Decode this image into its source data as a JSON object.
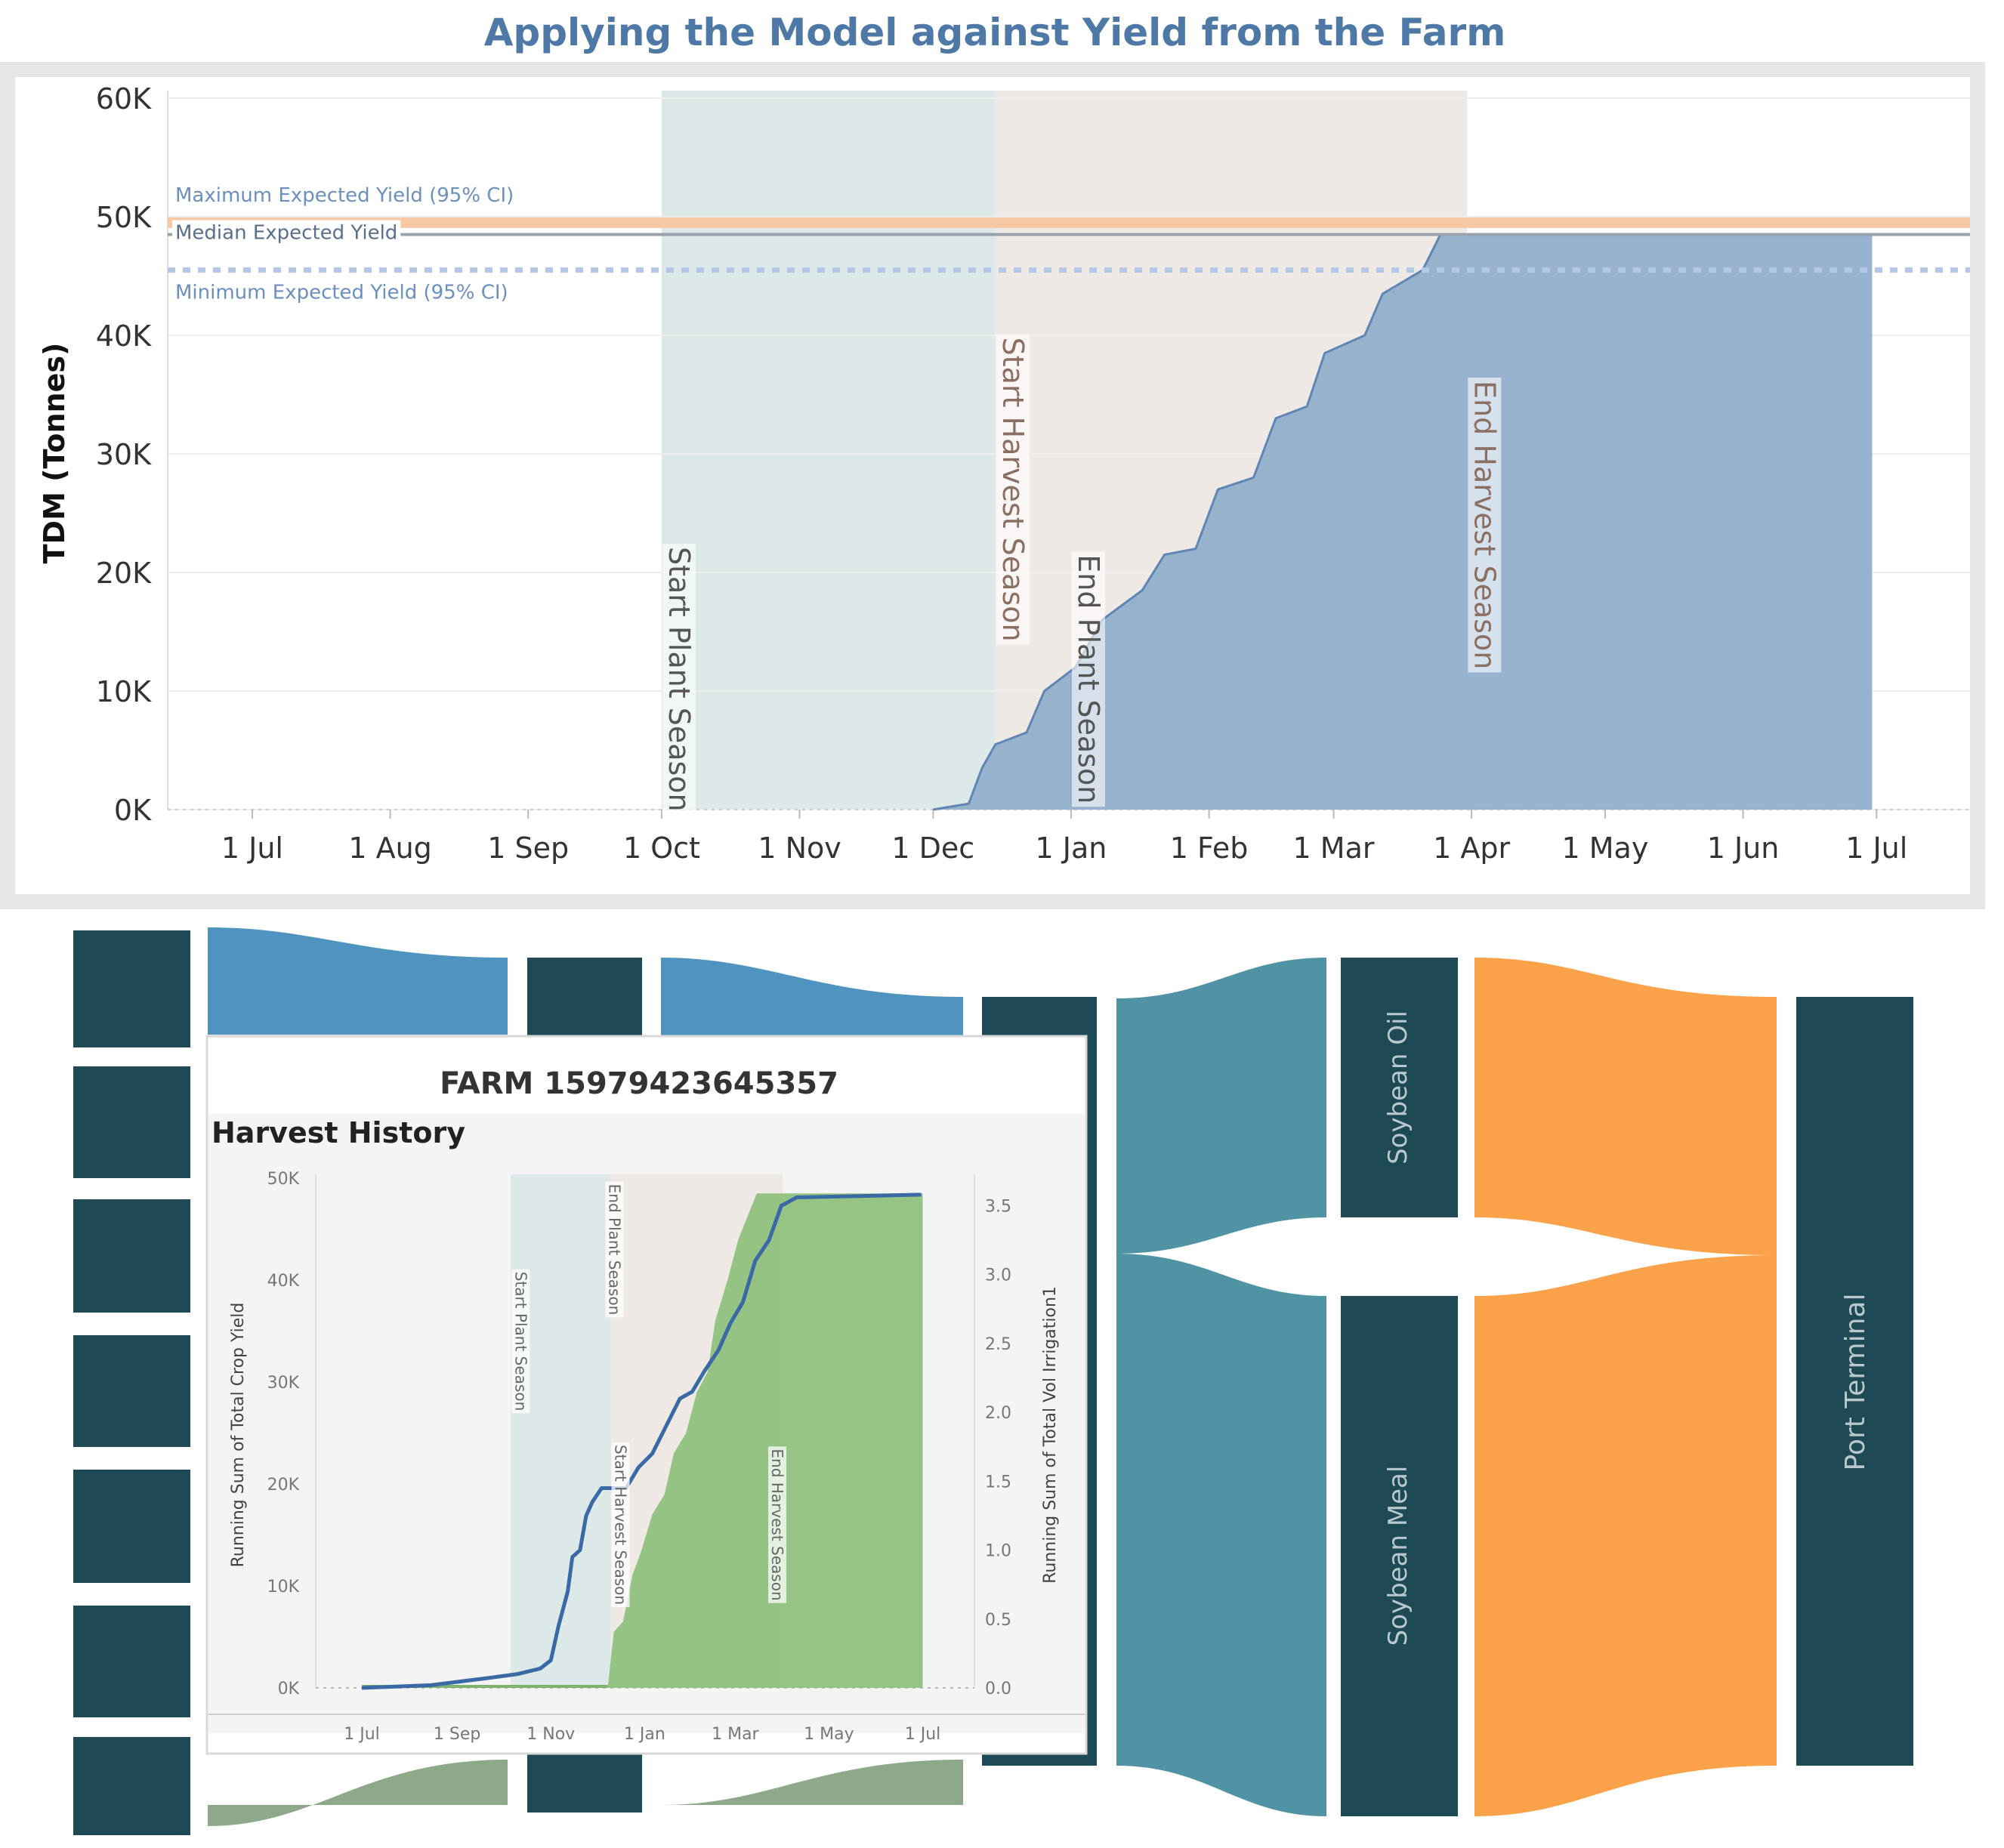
{
  "page_title": "Applying the Model against Yield from the Farm",
  "colors": {
    "title": "#4e79a7",
    "area_fill": "#8eaccb",
    "area_line": "#5f86b4",
    "plant_band": "#dde9e8",
    "harvest_band": "#efe9e6",
    "max_line": "#f6c9a4",
    "median_line": "#9aa3ad",
    "min_line": "#b3c8e6",
    "frame": "#e6e6e6",
    "node_dark": "#1e4a55",
    "flow_blue": "#4f94c1",
    "flow_teal": "#4f93a5",
    "flow_orange": "#fba24a",
    "flow_green": "#8da98a",
    "inset_green": "#8fc17e",
    "inset_line": "#3a6aa6"
  },
  "chart_data": [
    {
      "id": "main",
      "type": "area",
      "title": "Applying the Model against Yield from the Farm",
      "xlabel": "",
      "ylabel": "TDM (Tonnes)",
      "ylim": [
        0,
        60000
      ],
      "xlim": [
        "2022-06-12",
        "2023-07-22"
      ],
      "y_ticks": [
        {
          "value": 0,
          "label": "0K"
        },
        {
          "value": 10000,
          "label": "10K"
        },
        {
          "value": 20000,
          "label": "20K"
        },
        {
          "value": 30000,
          "label": "30K"
        },
        {
          "value": 40000,
          "label": "40K"
        },
        {
          "value": 50000,
          "label": "50K"
        },
        {
          "value": 60000,
          "label": "60K"
        }
      ],
      "x_ticks": [
        {
          "date": "2022-07-01",
          "label": "1 Jul"
        },
        {
          "date": "2022-08-01",
          "label": "1 Aug"
        },
        {
          "date": "2022-09-01",
          "label": "1 Sep"
        },
        {
          "date": "2022-10-01",
          "label": "1 Oct"
        },
        {
          "date": "2022-11-01",
          "label": "1 Nov"
        },
        {
          "date": "2022-12-01",
          "label": "1 Dec"
        },
        {
          "date": "2023-01-01",
          "label": "1 Jan"
        },
        {
          "date": "2023-02-01",
          "label": "1 Feb"
        },
        {
          "date": "2023-03-01",
          "label": "1 Mar"
        },
        {
          "date": "2023-04-01",
          "label": "1 Apr"
        },
        {
          "date": "2023-05-01",
          "label": "1 May"
        },
        {
          "date": "2023-06-01",
          "label": "1 Jun"
        },
        {
          "date": "2023-07-01",
          "label": "1 Jul"
        }
      ],
      "grid": true,
      "bands": [
        {
          "start": "2022-10-01",
          "end": "2022-12-15",
          "kind": "plant"
        },
        {
          "start": "2022-12-15",
          "end": "2023-03-31",
          "kind": "harvest"
        }
      ],
      "season_markers": [
        {
          "date": "2022-10-01",
          "label": "Start Plant Season",
          "y": 11000,
          "kind": "plant"
        },
        {
          "date": "2022-12-15",
          "label": "Start Harvest Season",
          "y": 27000,
          "kind": "harvest"
        },
        {
          "date": "2023-01-01",
          "label": "End Plant Season",
          "y": 11000,
          "kind": "plant"
        },
        {
          "date": "2023-03-31",
          "label": "End Harvest Season",
          "y": 24000,
          "kind": "harvest"
        }
      ],
      "reference_lines": [
        {
          "name": "Maximum Expected Yield (95% CI)",
          "value": 49500,
          "style": "max"
        },
        {
          "name": "Median Expected Yield",
          "value": 48500,
          "style": "median"
        },
        {
          "name": "Minimum Expected Yield (95% CI)",
          "value": 45500,
          "style": "min"
        }
      ],
      "series": [
        {
          "values": [
            {
              "x": "2022-12-01",
              "y": 0
            },
            {
              "x": "2022-12-09",
              "y": 500
            },
            {
              "x": "2022-12-12",
              "y": 3500
            },
            {
              "x": "2022-12-15",
              "y": 5500
            },
            {
              "x": "2022-12-22",
              "y": 6500
            },
            {
              "x": "2022-12-26",
              "y": 10000
            },
            {
              "x": "2023-01-02",
              "y": 12000
            },
            {
              "x": "2023-01-08",
              "y": 16000
            },
            {
              "x": "2023-01-17",
              "y": 18500
            },
            {
              "x": "2023-01-22",
              "y": 21500
            },
            {
              "x": "2023-01-29",
              "y": 22000
            },
            {
              "x": "2023-02-03",
              "y": 27000
            },
            {
              "x": "2023-02-11",
              "y": 28000
            },
            {
              "x": "2023-02-16",
              "y": 33000
            },
            {
              "x": "2023-02-23",
              "y": 34000
            },
            {
              "x": "2023-02-27",
              "y": 38500
            },
            {
              "x": "2023-03-08",
              "y": 40000
            },
            {
              "x": "2023-03-12",
              "y": 43500
            },
            {
              "x": "2023-03-21",
              "y": 45500
            },
            {
              "x": "2023-03-25",
              "y": 48500
            },
            {
              "x": "2023-06-30",
              "y": 48500
            }
          ]
        }
      ]
    },
    {
      "id": "inset",
      "type": "line",
      "title": "Harvest History",
      "ylabel": "Running Sum of Total Crop Yield",
      "y2label": "Running Sum of Total Vol Irrigation1",
      "ylim": [
        0,
        50000
      ],
      "y2lim": [
        0,
        3.7
      ],
      "xlim": [
        "2022-06-01",
        "2023-07-15"
      ],
      "y_ticks": [
        {
          "value": 0,
          "label": "0K"
        },
        {
          "value": 10000,
          "label": "10K"
        },
        {
          "value": 20000,
          "label": "20K"
        },
        {
          "value": 30000,
          "label": "30K"
        },
        {
          "value": 40000,
          "label": "40K"
        },
        {
          "value": 50000,
          "label": "50K"
        }
      ],
      "y2_ticks": [
        {
          "value": 0.0,
          "label": "0.0"
        },
        {
          "value": 0.5,
          "label": "0.5"
        },
        {
          "value": 1.0,
          "label": "1.0"
        },
        {
          "value": 1.5,
          "label": "1.5"
        },
        {
          "value": 2.0,
          "label": "2.0"
        },
        {
          "value": 2.5,
          "label": "2.5"
        },
        {
          "value": 3.0,
          "label": "3.0"
        },
        {
          "value": 3.5,
          "label": "3.5"
        }
      ],
      "x_ticks": [
        {
          "date": "2022-07-01",
          "label": "1 Jul"
        },
        {
          "date": "2022-09-01",
          "label": "1 Sep"
        },
        {
          "date": "2022-11-01",
          "label": "1 Nov"
        },
        {
          "date": "2023-01-01",
          "label": "1 Jan"
        },
        {
          "date": "2023-03-01",
          "label": "1 Mar"
        },
        {
          "date": "2023-05-01",
          "label": "1 May"
        },
        {
          "date": "2023-07-01",
          "label": "1 Jul"
        }
      ],
      "bands": [
        {
          "start": "2022-10-06",
          "end": "2022-12-10",
          "kind": "plant"
        },
        {
          "start": "2022-12-10",
          "end": "2023-04-01",
          "kind": "harvest"
        }
      ],
      "season_markers": [
        {
          "date": "2022-10-06",
          "label": "Start Plant Season",
          "y": 34000
        },
        {
          "date": "2022-12-06",
          "label": "End Plant Season",
          "y": 43000
        },
        {
          "date": "2022-12-10",
          "label": "Start Harvest Season",
          "y": 16000
        },
        {
          "date": "2023-03-22",
          "label": "End Harvest Season",
          "y": 16000
        }
      ],
      "crop_yield": [
        {
          "x": "2022-12-08",
          "y": 0
        },
        {
          "x": "2022-12-12",
          "y": 5500
        },
        {
          "x": "2022-12-18",
          "y": 6500
        },
        {
          "x": "2022-12-24",
          "y": 11000
        },
        {
          "x": "2022-12-30",
          "y": 13500
        },
        {
          "x": "2023-01-06",
          "y": 17000
        },
        {
          "x": "2023-01-14",
          "y": 19000
        },
        {
          "x": "2023-01-20",
          "y": 23000
        },
        {
          "x": "2023-01-28",
          "y": 25000
        },
        {
          "x": "2023-02-04",
          "y": 29000
        },
        {
          "x": "2023-02-11",
          "y": 31000
        },
        {
          "x": "2023-02-16",
          "y": 36000
        },
        {
          "x": "2023-02-24",
          "y": 40000
        },
        {
          "x": "2023-03-03",
          "y": 44000
        },
        {
          "x": "2023-03-11",
          "y": 47000
        },
        {
          "x": "2023-03-15",
          "y": 48500
        },
        {
          "x": "2023-07-01",
          "y": 48500
        }
      ],
      "irrigation": [
        {
          "x": "2022-07-01",
          "y": 0.0
        },
        {
          "x": "2022-08-15",
          "y": 0.02
        },
        {
          "x": "2022-09-20",
          "y": 0.07
        },
        {
          "x": "2022-10-10",
          "y": 0.1
        },
        {
          "x": "2022-10-25",
          "y": 0.14
        },
        {
          "x": "2022-11-01",
          "y": 0.2
        },
        {
          "x": "2022-11-06",
          "y": 0.45
        },
        {
          "x": "2022-11-12",
          "y": 0.7
        },
        {
          "x": "2022-11-15",
          "y": 0.95
        },
        {
          "x": "2022-11-20",
          "y": 1.0
        },
        {
          "x": "2022-11-24",
          "y": 1.25
        },
        {
          "x": "2022-11-28",
          "y": 1.35
        },
        {
          "x": "2022-12-04",
          "y": 1.45
        },
        {
          "x": "2022-12-20",
          "y": 1.45
        },
        {
          "x": "2022-12-28",
          "y": 1.6
        },
        {
          "x": "2023-01-06",
          "y": 1.7
        },
        {
          "x": "2023-01-15",
          "y": 1.9
        },
        {
          "x": "2023-01-24",
          "y": 2.1
        },
        {
          "x": "2023-02-01",
          "y": 2.15
        },
        {
          "x": "2023-02-09",
          "y": 2.3
        },
        {
          "x": "2023-02-18",
          "y": 2.45
        },
        {
          "x": "2023-02-26",
          "y": 2.65
        },
        {
          "x": "2023-03-06",
          "y": 2.8
        },
        {
          "x": "2023-03-14",
          "y": 3.1
        },
        {
          "x": "2023-03-23",
          "y": 3.25
        },
        {
          "x": "2023-03-31",
          "y": 3.5
        },
        {
          "x": "2023-04-10",
          "y": 3.56
        },
        {
          "x": "2023-06-30",
          "y": 3.58
        }
      ]
    }
  ],
  "inset": {
    "farm_title": "FARM 15979423645357",
    "subtitle": "Harvest History"
  },
  "sankey": {
    "node_labels": {
      "soybean_oil": "Soybean Oil",
      "soybean_meal": "Soybean Meal",
      "port_terminal": "Port Terminal"
    }
  }
}
